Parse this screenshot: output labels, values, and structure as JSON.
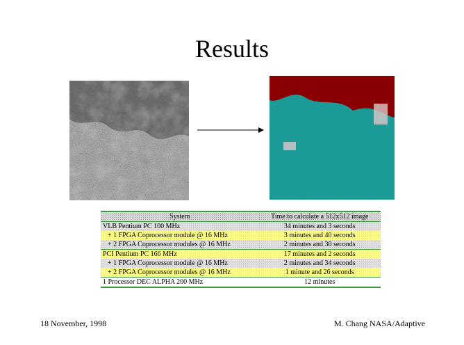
{
  "slide": {
    "title": "Results",
    "footer_left": "18 November, 1998",
    "footer_right": "M. Chang NASA/Adaptive"
  },
  "colors": {
    "accent_green": "#3aa040",
    "classified_teal": "#1a9a96",
    "classified_yellow": "#ffee00",
    "classified_maroon": "#8a0000"
  },
  "table": {
    "headers": [
      "System",
      "Time to calculate a 512x512 image"
    ],
    "rows": [
      {
        "system": "VLB Pentium PC 100 MHz",
        "time": "34 minutes and 3  seconds"
      },
      {
        "system": "+ 1 FPGA Coprocessor module @ 16 MHz",
        "time": "3 minutes and 40  seconds"
      },
      {
        "system": "+ 2 FPGA Coprocessor modules @ 16 MHz",
        "time": "2 minutes and 30  seconds"
      },
      {
        "system": "PCI Pentium PC 166 MHz",
        "time": "17 minutes and 2  seconds"
      },
      {
        "system": "+ 1 FPGA Coprocessor module @ 16 MHz",
        "time": "2 minutes and 34  seconds"
      },
      {
        "system": "+ 2 FPGA Coprocessor modules @ 16 MHz",
        "time": "1 minute and 26  seconds"
      },
      {
        "system": "1 Processor DEC ALPHA 200 MHz",
        "time": "12 minutes"
      }
    ]
  }
}
